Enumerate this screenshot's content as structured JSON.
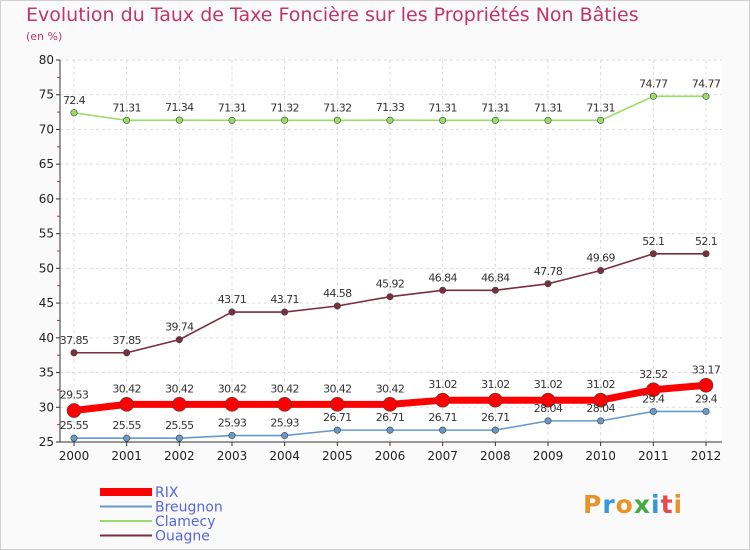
{
  "header": {
    "title": "Evolution du Taux de Taxe Foncière sur les Propriétés Non Bâties",
    "unit": "(en %)"
  },
  "logo": {
    "text": "Proxiti",
    "colors": [
      "#e8932a",
      "#3399dd",
      "#e8932a",
      "#44aa44",
      "#3399dd",
      "#e84a4a",
      "#e8932a"
    ]
  },
  "chart_data": {
    "type": "line",
    "x": [
      "2000",
      "2001",
      "2002",
      "2003",
      "2004",
      "2005",
      "2006",
      "2007",
      "2008",
      "2009",
      "2010",
      "2011",
      "2012"
    ],
    "ylim": [
      25,
      80
    ],
    "yticks": [
      25,
      30,
      35,
      40,
      45,
      50,
      55,
      60,
      65,
      70,
      75,
      80
    ],
    "grid": true,
    "legend": "bottom-left",
    "series": [
      {
        "name": "RIX",
        "color": "#ff0000",
        "values": [
          29.53,
          30.42,
          30.42,
          30.42,
          30.42,
          30.42,
          30.42,
          31.02,
          31.02,
          31.02,
          31.02,
          32.52,
          33.17
        ],
        "labels": [
          "29.53",
          "30.42",
          "30.42",
          "30.42",
          "30.42",
          "30.42",
          "30.42",
          "31.02",
          "31.02",
          "31.02",
          "31.02",
          "32.52",
          "33.17"
        ]
      },
      {
        "name": "Breugnon",
        "color": "#6699cc",
        "values": [
          25.55,
          25.55,
          25.55,
          25.93,
          25.93,
          26.71,
          26.71,
          26.71,
          26.71,
          28.04,
          28.04,
          29.4,
          29.4
        ],
        "labels": [
          "25.55",
          "25.55",
          "25.55",
          "25.93",
          "25.93",
          "26.71",
          "26.71",
          "26.71",
          "26.71",
          "28.04",
          "28.04",
          "29.4",
          "29.4"
        ]
      },
      {
        "name": "Clamecy",
        "color": "#99dd66",
        "values": [
          72.4,
          71.31,
          71.34,
          71.31,
          71.32,
          71.32,
          71.33,
          71.31,
          71.31,
          71.31,
          71.31,
          74.77,
          74.77
        ],
        "labels": [
          "72.4",
          "71.31",
          "71.34",
          "71.31",
          "71.32",
          "71.32",
          "71.33",
          "71.31",
          "71.31",
          "71.31",
          "71.31",
          "74.77",
          "74.77"
        ]
      },
      {
        "name": "Ouagne",
        "color": "#7a2f3a",
        "values": [
          37.85,
          37.85,
          39.74,
          43.71,
          43.71,
          44.58,
          45.92,
          46.84,
          46.84,
          47.78,
          49.69,
          52.1,
          52.1
        ],
        "labels": [
          "37.85",
          "37.85",
          "39.74",
          "43.71",
          "43.71",
          "44.58",
          "45.92",
          "46.84",
          "46.84",
          "47.78",
          "49.69",
          "52.1",
          "52.1"
        ]
      }
    ]
  }
}
